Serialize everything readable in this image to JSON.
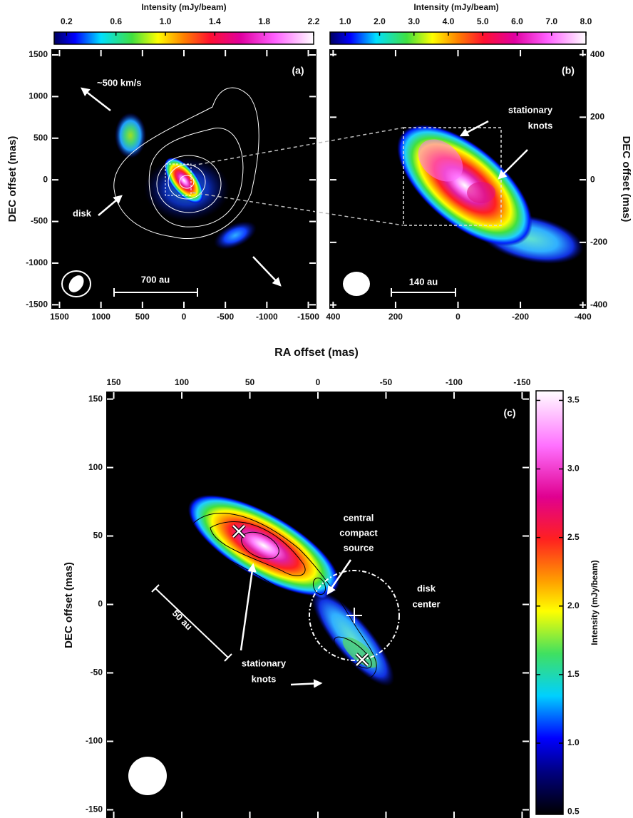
{
  "xlabel": "RA offset (mas)",
  "chart_data": [
    {
      "type": "image",
      "panel_label": "(a)",
      "ylabel": "DEC offset (mas)",
      "xlim": [
        1590,
        -1590
      ],
      "xticks": [
        1500,
        1000,
        500,
        0,
        -500,
        -1000,
        -1500
      ],
      "ylim": [
        -1540,
        1560
      ],
      "yticks": [
        1500,
        1000,
        500,
        0,
        -500,
        -1000,
        -1500
      ],
      "colorbar": {
        "label": "Intensity (mJy/beam)",
        "lim": [
          0.1,
          2.2
        ],
        "ticks": [
          0.2,
          0.6,
          {
            "value": 1,
            "label": "1.0"
          },
          1.4,
          1.8,
          2.2
        ]
      },
      "annotations": [
        [
          "~500 km/s"
        ],
        [
          "disk"
        ],
        [
          "700 au"
        ]
      ]
    },
    {
      "type": "image",
      "panel_label": "(b)",
      "ylabel": "DEC offset (mas)",
      "xlim": [
        410,
        -410
      ],
      "xticks": [
        400,
        200,
        0,
        -200,
        -400
      ],
      "ylim": [
        -410,
        415
      ],
      "yticks": [
        400,
        200,
        0,
        -200,
        -400
      ],
      "colorbar": {
        "label": "Intensity (mJy/beam)",
        "lim": [
          0.56,
          8
        ],
        "ticks": [
          {
            "value": 1,
            "label": "1.0"
          },
          {
            "value": 2,
            "label": "2.0"
          },
          {
            "value": 3,
            "label": "3.0"
          },
          {
            "value": 4,
            "label": "4.0"
          },
          {
            "value": 5,
            "label": "5.0"
          },
          {
            "value": 6,
            "label": "6.0"
          },
          {
            "value": 7,
            "label": "7.0"
          },
          {
            "value": 8,
            "label": "8.0"
          }
        ]
      },
      "annotations": [
        [
          "stationary",
          "knots"
        ],
        [
          "140 au"
        ]
      ]
    },
    {
      "type": "image",
      "panel_label": "(c)",
      "ylabel": "DEC offset (mas)",
      "xlim": [
        155,
        -155
      ],
      "xticks": [
        150,
        100,
        50,
        0,
        -50,
        -100,
        -150
      ],
      "ylim": [
        -156,
        155
      ],
      "yticks": [
        150,
        100,
        50,
        0,
        -50,
        -100,
        -150
      ],
      "colorbar": {
        "label": "Intensity (mJy/beam)",
        "lim": [
          0.48,
          3.57
        ],
        "ticks": [
          0.5,
          {
            "value": 1,
            "label": "1.0"
          },
          1.5,
          {
            "value": 2,
            "label": "2.0"
          },
          2.5,
          {
            "value": 3,
            "label": "3.0"
          },
          3.5
        ]
      },
      "annotations": [
        [
          "central",
          "compact",
          "source"
        ],
        [
          "disk",
          "center"
        ],
        [
          "stationary",
          "knots"
        ],
        [
          "50 au"
        ]
      ]
    }
  ]
}
